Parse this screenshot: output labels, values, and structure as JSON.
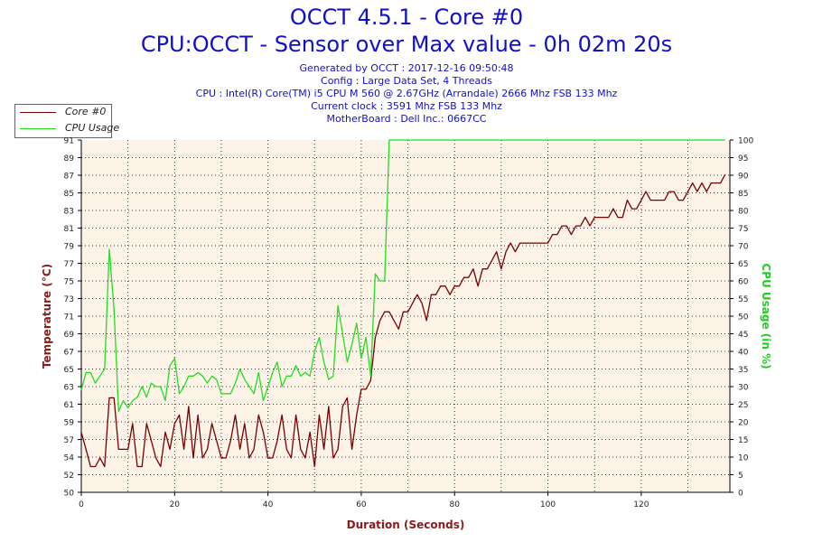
{
  "title": "OCCT 4.5.1 - Core #0",
  "subtitle": "CPU:OCCT - Sensor over Max value - 0h 02m 20s",
  "info_lines": [
    "Generated by OCCT : 2017-12-16 09:50:48",
    "Config : Large Data Set, 4 Threads",
    "CPU : Intel(R) Core(TM) i5 CPU M 560 @ 2.67GHz (Arrandale) 2666 Mhz FSB 133 Mhz",
    "Current clock : 3591 Mhz FSB 133 Mhz",
    "MotherBoard : Dell Inc.: 0667CC"
  ],
  "colors": {
    "temp_series": "#7a0000",
    "usage_series": "#22dd22",
    "temp_axis_label": "#8b1a1a",
    "usage_axis_label": "#22cc22",
    "plot_background": "#fdf3e6",
    "title_text": "#1010c8"
  },
  "chart_data": {
    "type": "line",
    "x_label": "Duration (Seconds)",
    "y_left_label": "Temperature (°C)",
    "y_right_label": "CPU Usage (in %)",
    "xlim": [
      0,
      139
    ],
    "y_left_lim": [
      50,
      91
    ],
    "y_right_lim": [
      0,
      100
    ],
    "x_ticks": [
      0,
      20,
      40,
      60,
      80,
      100,
      120
    ],
    "y_left_ticks": [
      50,
      52,
      54,
      57,
      59,
      61,
      63,
      65,
      67,
      69,
      71,
      73,
      75,
      77,
      79,
      81,
      83,
      85,
      87,
      89,
      91
    ],
    "y_right_ticks": [
      0,
      5,
      10,
      15,
      20,
      25,
      30,
      35,
      40,
      45,
      50,
      55,
      60,
      65,
      70,
      75,
      80,
      85,
      90,
      95,
      100
    ],
    "grid": true,
    "legend_position": "top-left",
    "series": [
      {
        "name": "Core #0",
        "axis": "left",
        "x": [
          0,
          1,
          2,
          3,
          4,
          5,
          6,
          7,
          8,
          9,
          10,
          11,
          12,
          13,
          14,
          15,
          16,
          17,
          18,
          19,
          20,
          21,
          22,
          23,
          24,
          25,
          26,
          27,
          28,
          29,
          30,
          31,
          32,
          33,
          34,
          35,
          36,
          37,
          38,
          39,
          40,
          41,
          42,
          43,
          44,
          45,
          46,
          47,
          48,
          49,
          50,
          51,
          52,
          53,
          54,
          55,
          56,
          57,
          58,
          59,
          60,
          61,
          62,
          63,
          64,
          65,
          66,
          67,
          68,
          69,
          70,
          71,
          72,
          73,
          74,
          75,
          76,
          77,
          78,
          79,
          80,
          81,
          82,
          83,
          84,
          85,
          86,
          87,
          88,
          89,
          90,
          91,
          92,
          93,
          94,
          95,
          96,
          97,
          98,
          99,
          100,
          101,
          102,
          103,
          104,
          105,
          106,
          107,
          108,
          109,
          110,
          111,
          112,
          113,
          114,
          115,
          116,
          117,
          118,
          119,
          120,
          121,
          122,
          123,
          124,
          125,
          126,
          127,
          128,
          129,
          130,
          131,
          132,
          133,
          134,
          135,
          136,
          137,
          138
        ],
        "y": [
          57,
          55,
          53,
          53,
          54,
          53,
          61,
          61,
          55,
          55,
          55,
          58,
          53,
          53,
          58,
          56,
          54,
          53,
          57,
          55,
          58,
          59,
          55,
          60,
          54,
          59,
          54,
          55,
          58,
          56,
          54,
          54,
          56,
          59,
          55,
          58,
          54,
          55,
          59,
          57,
          54,
          54,
          56,
          59,
          55,
          54,
          59,
          55,
          54,
          57,
          53,
          59,
          55,
          60,
          54,
          55,
          60,
          61,
          55,
          59,
          62,
          62,
          63,
          68,
          70,
          71,
          71,
          70,
          69,
          71,
          71,
          72,
          73,
          72,
          70,
          73,
          73,
          74,
          74,
          73,
          74,
          74,
          75,
          75,
          76,
          74,
          76,
          76,
          77,
          78,
          76,
          78,
          79,
          78,
          79,
          79,
          79,
          79,
          79,
          79,
          79,
          80,
          80,
          81,
          81,
          80,
          81,
          81,
          82,
          81,
          82,
          82,
          82,
          82,
          83,
          82,
          82,
          84,
          83,
          83,
          84,
          85,
          84,
          84,
          84,
          84,
          85,
          85,
          84,
          84,
          85,
          86,
          85,
          86,
          85,
          86,
          86,
          86,
          87
        ]
      },
      {
        "name": "CPU Usage",
        "axis": "right",
        "x": [
          0,
          1,
          2,
          3,
          4,
          5,
          6,
          7,
          8,
          9,
          10,
          11,
          12,
          13,
          14,
          15,
          16,
          17,
          18,
          19,
          20,
          21,
          22,
          23,
          24,
          25,
          26,
          27,
          28,
          29,
          30,
          31,
          32,
          33,
          34,
          35,
          36,
          37,
          38,
          39,
          40,
          41,
          42,
          43,
          44,
          45,
          46,
          47,
          48,
          49,
          50,
          51,
          52,
          53,
          54,
          55,
          56,
          57,
          58,
          59,
          60,
          61,
          62,
          63,
          64,
          65,
          66,
          67,
          68,
          69,
          70,
          71,
          72,
          73,
          74,
          75,
          76,
          77,
          78,
          79,
          80,
          81,
          82,
          83,
          84,
          85,
          86,
          87,
          88,
          89,
          90,
          91,
          92,
          93,
          94,
          95,
          96,
          97,
          98,
          99,
          100,
          101,
          102,
          103,
          104,
          105,
          106,
          107,
          108,
          109,
          110,
          111,
          112,
          113,
          114,
          115,
          116,
          117,
          118,
          119,
          120,
          121,
          122,
          123,
          124,
          125,
          126,
          127,
          128,
          129,
          130,
          131,
          132,
          133,
          134,
          135,
          136,
          137,
          138
        ],
        "y": [
          29,
          34,
          34,
          31,
          33,
          35,
          69,
          52,
          23,
          26,
          24,
          26,
          27,
          30,
          27,
          31,
          30,
          30,
          26,
          36,
          38,
          28,
          30,
          33,
          33,
          34,
          33,
          31,
          33,
          32,
          28,
          28,
          28,
          31,
          35,
          32,
          30,
          28,
          34,
          26,
          30,
          34,
          37,
          30,
          33,
          33,
          36,
          33,
          34,
          33,
          40,
          44,
          37,
          32,
          33,
          53,
          45,
          37,
          42,
          48,
          38,
          44,
          33,
          62,
          60,
          60,
          100,
          100,
          100,
          100,
          100,
          100,
          100,
          100,
          100,
          100,
          100,
          100,
          100,
          100,
          100,
          100,
          100,
          100,
          100,
          100,
          100,
          100,
          100,
          100,
          100,
          100,
          100,
          100,
          100,
          100,
          100,
          100,
          100,
          100,
          100,
          100,
          100,
          100,
          100,
          100,
          100,
          100,
          100,
          100,
          100,
          100,
          100,
          100,
          100,
          100,
          100,
          100,
          100,
          100,
          100,
          100,
          100,
          100,
          100,
          100,
          100,
          100,
          100,
          100,
          100,
          100,
          100,
          100,
          100,
          100,
          100,
          100,
          100
        ]
      }
    ]
  }
}
